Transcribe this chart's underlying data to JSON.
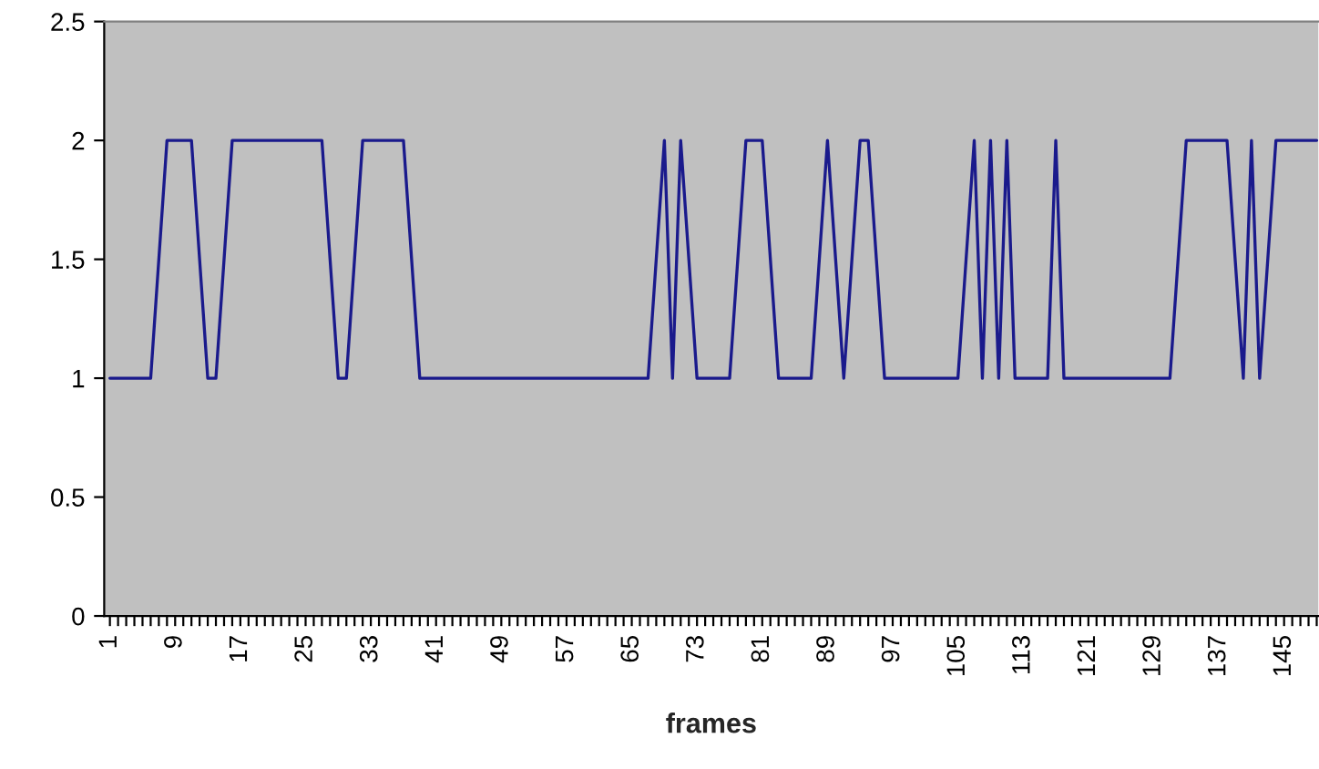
{
  "chart_data": {
    "type": "line",
    "xlabel": "frames",
    "categories": [
      "1",
      null,
      null,
      null,
      null,
      null,
      null,
      null,
      "9",
      null,
      null,
      null,
      null,
      null,
      null,
      null,
      "17",
      null,
      null,
      null,
      null,
      null,
      null,
      null,
      "25",
      null,
      null,
      null,
      null,
      null,
      null,
      null,
      "33",
      null,
      null,
      null,
      null,
      null,
      null,
      null,
      "41",
      null,
      null,
      null,
      null,
      null,
      null,
      null,
      "49",
      null,
      null,
      null,
      null,
      null,
      null,
      null,
      "57",
      null,
      null,
      null,
      null,
      null,
      null,
      null,
      "65",
      null,
      null,
      null,
      null,
      null,
      null,
      null,
      "73",
      null,
      null,
      null,
      null,
      null,
      null,
      null,
      "81",
      null,
      null,
      null,
      null,
      null,
      null,
      null,
      "89",
      null,
      null,
      null,
      null,
      null,
      null,
      null,
      "97",
      null,
      null,
      null,
      null,
      null,
      null,
      null,
      "105",
      null,
      null,
      null,
      null,
      null,
      null,
      null,
      "113",
      null,
      null,
      null,
      null,
      null,
      null,
      null,
      "121",
      null,
      null,
      null,
      null,
      null,
      null,
      null,
      "129",
      null,
      null,
      null,
      null,
      null,
      null,
      null,
      "137",
      null,
      null,
      null,
      null,
      null,
      null,
      null,
      "145",
      null,
      null,
      null,
      null
    ],
    "series": [
      {
        "color": "#1a1a8c",
        "values": [
          1,
          1,
          1,
          1,
          1,
          1,
          1.5,
          2,
          2,
          2,
          2,
          1.5,
          1,
          1,
          1.5,
          2,
          2,
          2,
          2,
          2,
          2,
          2,
          2,
          2,
          2,
          2,
          2,
          1.5,
          1,
          1,
          1.5,
          2,
          2,
          2,
          2,
          2,
          2,
          1.5,
          1,
          1,
          1,
          1,
          1,
          1,
          1,
          1,
          1,
          1,
          1,
          1,
          1,
          1,
          1,
          1,
          1,
          1,
          1,
          1,
          1,
          1,
          1,
          1,
          1,
          1,
          1,
          1,
          1,
          1.5,
          2,
          1,
          2,
          1.5,
          1,
          1,
          1,
          1,
          1,
          1.5,
          2,
          2,
          2,
          1.5,
          1,
          1,
          1,
          1,
          1,
          1.5,
          2,
          1.5,
          1,
          1.5,
          2,
          2,
          1.5,
          1,
          1,
          1,
          1,
          1,
          1,
          1,
          1,
          1,
          1,
          1.5,
          2,
          1,
          2,
          1,
          2,
          1,
          1,
          1,
          1,
          1,
          2,
          1,
          1,
          1,
          1,
          1,
          1,
          1,
          1,
          1,
          1,
          1,
          1,
          1,
          1,
          1.5,
          2,
          2,
          2,
          2,
          2,
          2,
          1.5,
          1,
          2,
          1,
          1.5,
          2,
          2,
          2,
          2,
          2,
          2
        ]
      }
    ],
    "ylim": [
      0,
      2.5
    ],
    "yticks": [
      0,
      0.5,
      1,
      1.5,
      2,
      2.5
    ],
    "grid": false,
    "marker": "none",
    "line_style": "solid"
  }
}
